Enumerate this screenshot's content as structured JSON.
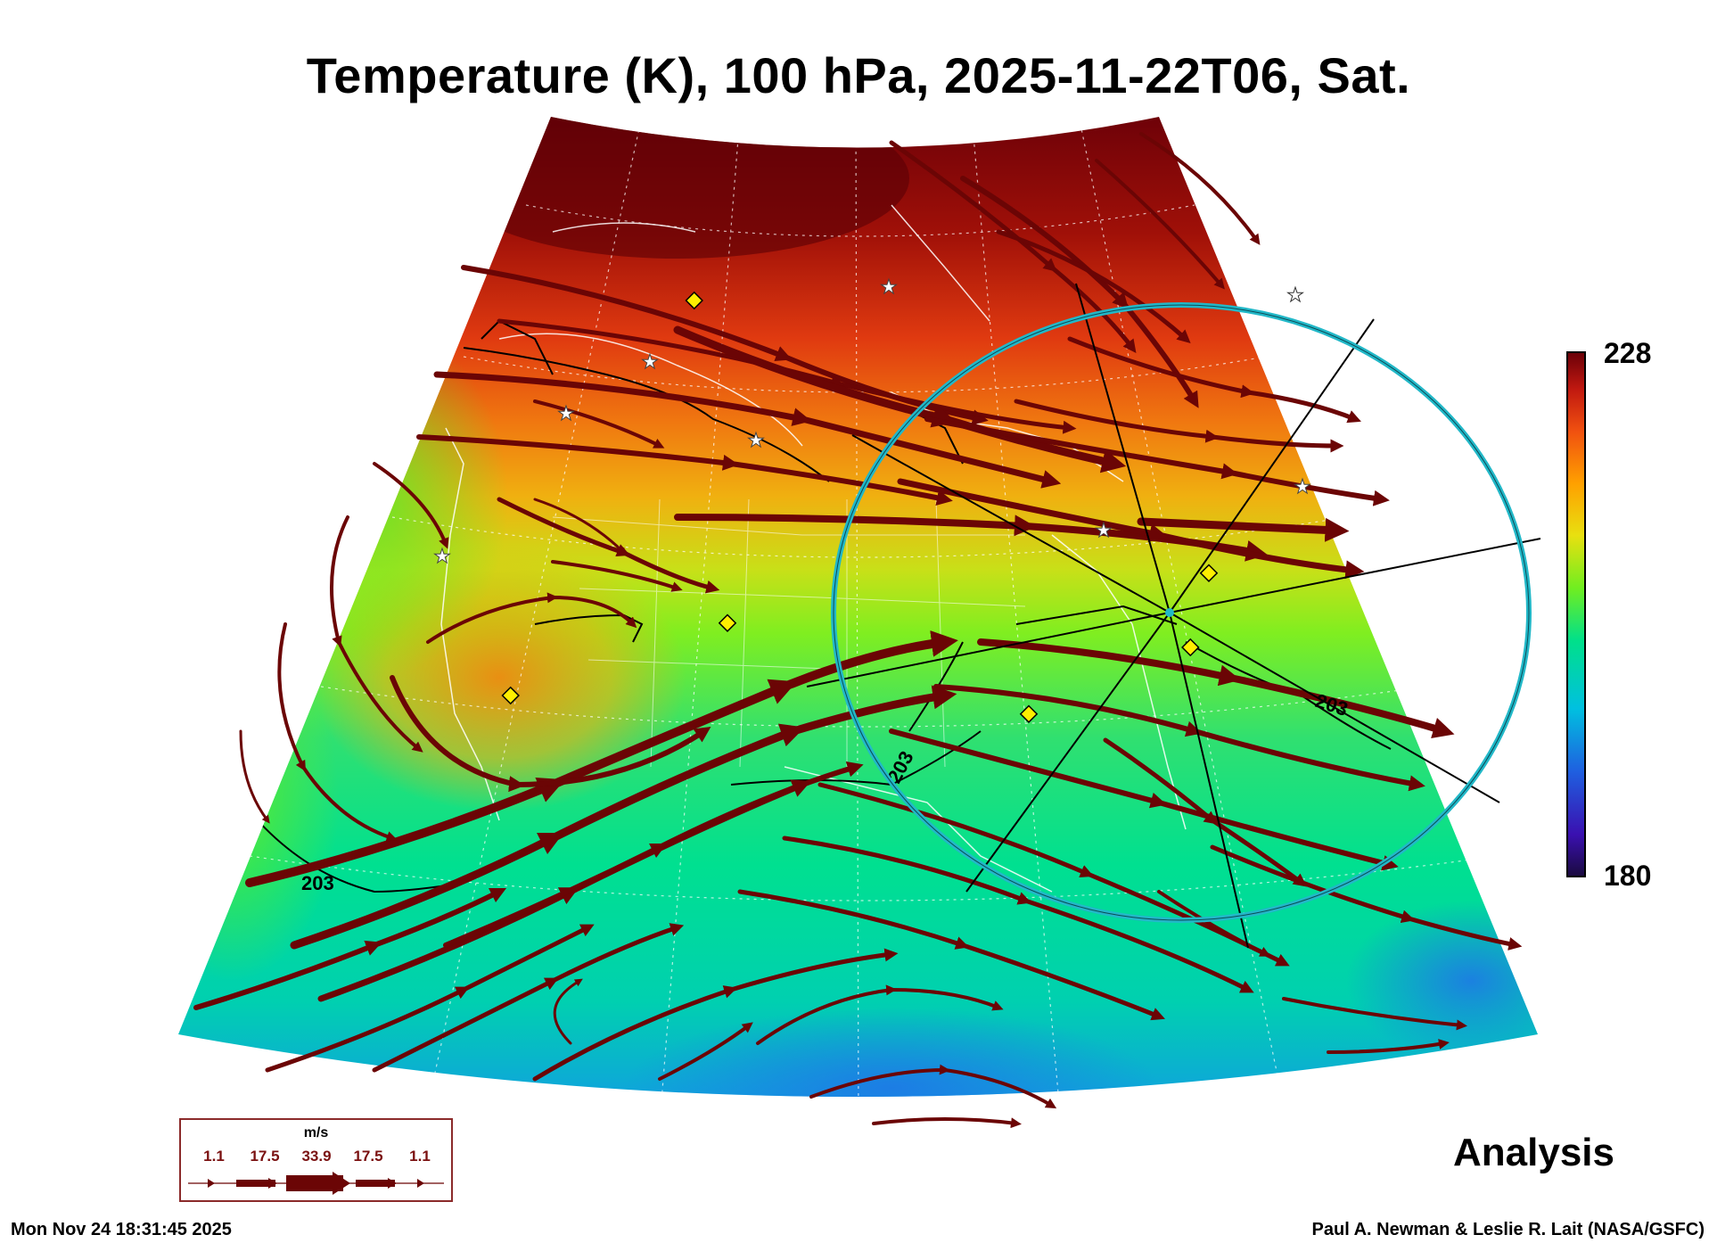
{
  "title": "Temperature (K), 100 hPa, 2025-11-22T06, Sat.",
  "colorbar": {
    "max_label": "228",
    "min_label": "180",
    "colors": [
      "#1a0a3e",
      "#3a10b0",
      "#1f5fe0",
      "#00c0e0",
      "#00e08a",
      "#70ee20",
      "#e8e010",
      "#ffa000",
      "#f05010",
      "#c01810",
      "#6a0008"
    ]
  },
  "contour_labels": [
    "203",
    "203",
    "203"
  ],
  "analysis_label": "Analysis",
  "legend": {
    "units": "m/s",
    "values": [
      "1.1",
      "17.5",
      "33.9",
      "17.5",
      "1.1"
    ]
  },
  "timestamp": "Mon Nov 24 18:31:45 2025",
  "credit": "Paul A. Newman & Leslie R. Lait (NASA/GSFC)",
  "colors": {
    "streamline": "#6b0505",
    "ring": "#22b8c8"
  }
}
